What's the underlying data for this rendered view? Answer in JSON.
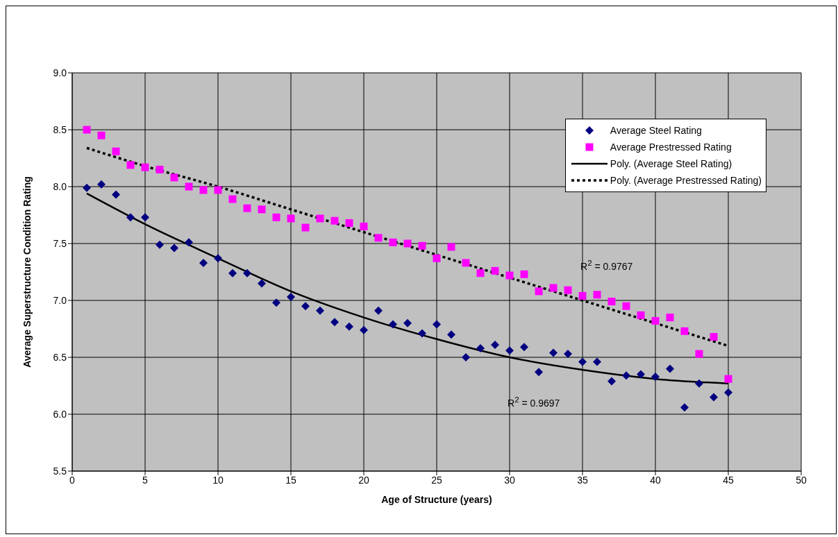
{
  "chart_data": {
    "type": "scatter",
    "xlabel": "Age of Structure (years)",
    "ylabel": "Average Superstructure Condition Rating",
    "x": [
      1,
      2,
      3,
      4,
      5,
      6,
      7,
      8,
      9,
      10,
      11,
      12,
      13,
      14,
      15,
      16,
      17,
      18,
      19,
      20,
      21,
      22,
      23,
      24,
      25,
      26,
      27,
      28,
      29,
      30,
      31,
      32,
      33,
      34,
      35,
      36,
      37,
      38,
      39,
      40,
      41,
      42,
      43,
      44,
      45
    ],
    "series": [
      {
        "name": "Average Steel Rating",
        "marker": "diamond",
        "color": "#000080",
        "values": [
          7.99,
          8.02,
          7.93,
          7.73,
          7.73,
          7.49,
          7.46,
          7.51,
          7.33,
          7.37,
          7.24,
          7.24,
          7.15,
          6.98,
          7.03,
          6.95,
          6.91,
          6.81,
          6.77,
          6.74,
          6.91,
          6.79,
          6.8,
          6.71,
          6.79,
          6.7,
          6.5,
          6.58,
          6.61,
          6.56,
          6.59,
          6.37,
          6.54,
          6.53,
          6.46,
          6.46,
          6.29,
          6.34,
          6.35,
          6.33,
          6.4,
          6.06,
          6.27,
          6.15,
          6.19
        ]
      },
      {
        "name": "Average Prestressed Rating",
        "marker": "square",
        "color": "#ff00ff",
        "values": [
          8.5,
          8.45,
          8.31,
          8.19,
          8.17,
          8.15,
          8.08,
          8.0,
          7.97,
          7.97,
          7.89,
          7.81,
          7.8,
          7.73,
          7.72,
          7.64,
          7.72,
          7.7,
          7.68,
          7.65,
          7.55,
          7.51,
          7.5,
          7.48,
          7.37,
          7.47,
          7.33,
          7.24,
          7.26,
          7.22,
          7.23,
          7.08,
          7.11,
          7.09,
          7.04,
          7.05,
          6.99,
          6.95,
          6.87,
          6.82,
          6.85,
          6.73,
          6.53,
          6.68,
          6.31
        ]
      },
      {
        "name": "Poly. (Average Steel Rating)",
        "type": "line",
        "line_style": "solid",
        "color": "#000000",
        "x": [
          1,
          5,
          10,
          15,
          20,
          25,
          30,
          35,
          40,
          45
        ],
        "values": [
          7.94,
          7.67,
          7.37,
          7.08,
          6.85,
          6.66,
          6.5,
          6.39,
          6.31,
          6.27
        ]
      },
      {
        "name": "Poly. (Average Prestressed Rating)",
        "type": "line",
        "line_style": "dotted",
        "color": "#000000",
        "x": [
          1,
          5,
          10,
          15,
          20,
          25,
          30,
          35,
          40,
          45
        ],
        "values": [
          8.34,
          8.18,
          8.0,
          7.8,
          7.6,
          7.4,
          7.2,
          7.0,
          6.8,
          6.6
        ]
      }
    ],
    "xlim": [
      0,
      50
    ],
    "xticks": [
      0,
      5,
      10,
      15,
      20,
      25,
      30,
      35,
      40,
      45,
      50
    ],
    "ylim": [
      5.5,
      9.0
    ],
    "yticks": [
      {
        "value": 5.5,
        "label": "5.5"
      },
      {
        "value": 6,
        "label": "6.0"
      },
      {
        "value": 6.5,
        "label": "6.5"
      },
      {
        "value": 7,
        "label": "7.0"
      },
      {
        "value": 7.5,
        "label": "7.5"
      },
      {
        "value": 8,
        "label": "8.0"
      },
      {
        "value": 8.5,
        "label": "8.5"
      },
      {
        "value": 9,
        "label": "9.0"
      }
    ],
    "grid": true,
    "legend": "top right",
    "annotations": [
      "R$^{2}$ = 0.9767",
      "R$^{2}$ = 0.9697"
    ]
  }
}
